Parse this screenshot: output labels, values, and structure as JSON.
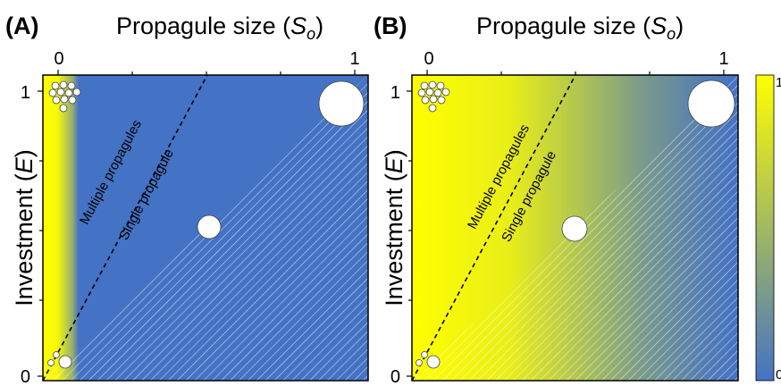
{
  "chart_data": [
    {
      "panel": "(A)",
      "type": "heatmap",
      "xlabel": "Propagule size (S_o)",
      "ylabel": "Investment (E)",
      "x_ticks": [
        {
          "value": 0,
          "label": "0"
        },
        {
          "value": 1,
          "label": "1"
        }
      ],
      "y_ticks": [
        {
          "value": 0,
          "label": "0"
        },
        {
          "value": 1,
          "label": "1"
        }
      ],
      "xlim": [
        0,
        1
      ],
      "ylim": [
        0,
        1
      ],
      "color_profile": [
        [
          0,
          1
        ],
        [
          0.045,
          0.95
        ],
        [
          0.09,
          0.45
        ],
        [
          0.11,
          0.0
        ],
        [
          1,
          0.0
        ]
      ],
      "region_labels": [
        "Multiple propagules",
        "Single propagule"
      ],
      "boundary": {
        "style": "dashed",
        "slope": 2
      }
    },
    {
      "panel": "(B)",
      "type": "heatmap",
      "xlabel": "Propagule size (S_o)",
      "ylabel": "Investment (E)",
      "x_ticks": [
        {
          "value": 0,
          "label": "0"
        },
        {
          "value": 1,
          "label": "1"
        }
      ],
      "y_ticks": [
        {
          "value": 0,
          "label": "0"
        },
        {
          "value": 1,
          "label": "1"
        }
      ],
      "xlim": [
        0,
        1
      ],
      "ylim": [
        0,
        1
      ],
      "color_profile": [
        [
          0,
          1
        ],
        [
          0.3,
          0.88
        ],
        [
          0.5,
          0.6
        ],
        [
          0.7,
          0.3
        ],
        [
          0.9,
          0.08
        ],
        [
          1,
          0.0
        ]
      ],
      "region_labels": [
        "Multiple propagules",
        "Single propagule"
      ],
      "boundary": {
        "style": "dashed",
        "slope": 2
      }
    }
  ],
  "colorbar": {
    "max_label": "1",
    "min_label": "0",
    "low_color": "#4472c4",
    "high_color": "#ffff00"
  },
  "colors": {
    "low": "#4472c4",
    "high": "#ffff00"
  }
}
